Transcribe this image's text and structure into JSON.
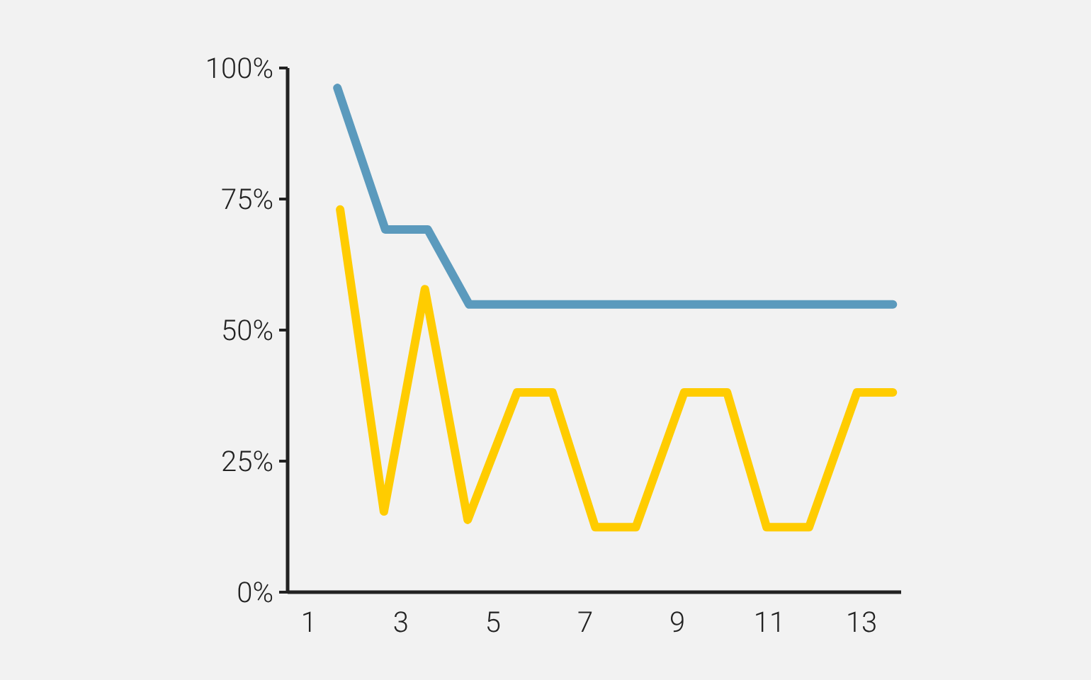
{
  "chart_data": {
    "type": "line",
    "xlim": [
      0.54,
      13.86
    ],
    "xticks": [
      1,
      3,
      5,
      7,
      9,
      11,
      13
    ],
    "ylim": [
      0,
      100
    ],
    "yticks": [
      {
        "value": 0,
        "label": "0%"
      },
      {
        "value": 25,
        "label": "25%"
      },
      {
        "value": 50,
        "label": "50%"
      },
      {
        "value": 75,
        "label": "75%"
      },
      {
        "value": 100,
        "label": "100%"
      }
    ],
    "grid": false,
    "marker": "none",
    "line_style": "solid",
    "series": [
      {
        "color": "#5b9abd",
        "x": [
          1.62,
          2.66,
          3.58,
          4.48,
          13.68
        ],
        "values": [
          96.2,
          69.2,
          69.2,
          54.9,
          54.9
        ]
      },
      {
        "color": "#ffcc00",
        "x": [
          1.68,
          2.63,
          3.52,
          4.45,
          5.52,
          6.29,
          7.22,
          8.1,
          9.15,
          10.08,
          10.94,
          11.86,
          12.9,
          13.68
        ],
        "values": [
          73,
          15.4,
          57.8,
          13.8,
          38.1,
          38.1,
          12.4,
          12.4,
          38.1,
          38.1,
          12.4,
          12.4,
          38.1,
          38.1
        ]
      }
    ]
  }
}
